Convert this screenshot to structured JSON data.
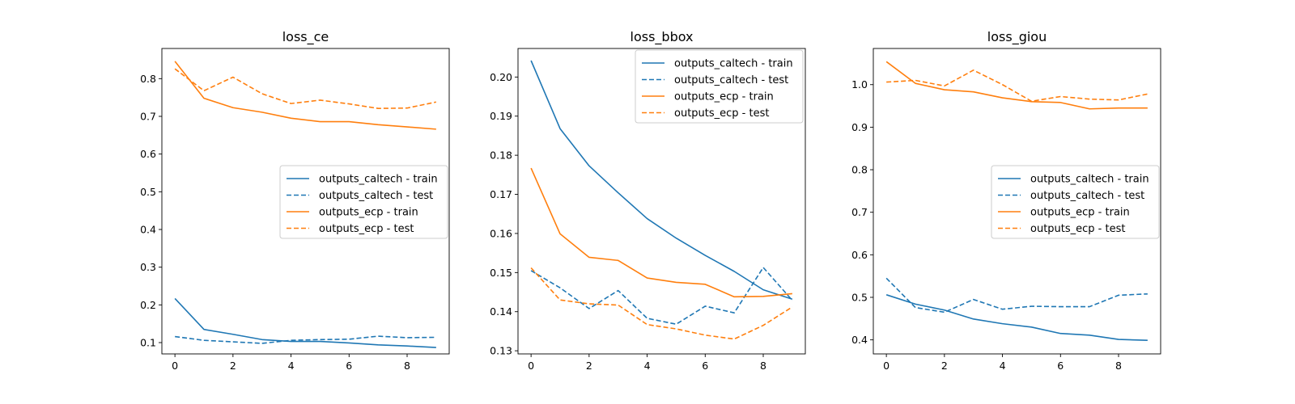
{
  "chart_data": [
    {
      "type": "line",
      "title": "loss_ce",
      "xlabel": "",
      "ylabel": "",
      "x": [
        0,
        1,
        2,
        3,
        4,
        5,
        6,
        7,
        8,
        9
      ],
      "xlim": [
        -0.45,
        9.45
      ],
      "ylim": [
        0.07,
        0.88
      ],
      "xticks": [
        0,
        2,
        4,
        6,
        8
      ],
      "yticks": [
        0.1,
        0.2,
        0.3,
        0.4,
        0.5,
        0.6,
        0.7,
        0.8
      ],
      "grid": false,
      "legend_position": "center-right",
      "series": [
        {
          "name": "outputs_caltech - train",
          "color": "#1f77b4",
          "style": "solid",
          "values": [
            0.217,
            0.135,
            0.122,
            0.108,
            0.103,
            0.103,
            0.099,
            0.094,
            0.091,
            0.087
          ]
        },
        {
          "name": "outputs_caltech - test",
          "color": "#1f77b4",
          "style": "dashed",
          "values": [
            0.116,
            0.106,
            0.102,
            0.098,
            0.106,
            0.108,
            0.109,
            0.117,
            0.113,
            0.114
          ]
        },
        {
          "name": "outputs_ecp - train",
          "color": "#ff7f0e",
          "style": "solid",
          "values": [
            0.846,
            0.748,
            0.723,
            0.711,
            0.695,
            0.686,
            0.686,
            0.678,
            0.672,
            0.666
          ]
        },
        {
          "name": "outputs_ecp - test",
          "color": "#ff7f0e",
          "style": "dashed",
          "values": [
            0.826,
            0.768,
            0.804,
            0.76,
            0.734,
            0.743,
            0.733,
            0.721,
            0.722,
            0.738
          ]
        }
      ]
    },
    {
      "type": "line",
      "title": "loss_bbox",
      "xlabel": "",
      "ylabel": "",
      "x": [
        0,
        1,
        2,
        3,
        4,
        5,
        6,
        7,
        8,
        9
      ],
      "xlim": [
        -0.45,
        9.45
      ],
      "ylim": [
        0.1292,
        0.2073
      ],
      "xticks": [
        0,
        2,
        4,
        6,
        8
      ],
      "yticks": [
        0.13,
        0.14,
        0.15,
        0.16,
        0.17,
        0.18,
        0.19,
        0.2
      ],
      "grid": false,
      "legend_position": "top-right",
      "series": [
        {
          "name": "outputs_caltech - train",
          "color": "#1f77b4",
          "style": "solid",
          "values": [
            0.2042,
            0.1868,
            0.1773,
            0.1704,
            0.1638,
            0.1588,
            0.1544,
            0.1503,
            0.1456,
            0.1432
          ]
        },
        {
          "name": "outputs_caltech - test",
          "color": "#1f77b4",
          "style": "dashed",
          "values": [
            0.1505,
            0.1461,
            0.1408,
            0.1454,
            0.1383,
            0.1368,
            0.1414,
            0.1397,
            0.1513,
            0.1429
          ]
        },
        {
          "name": "outputs_ecp - train",
          "color": "#ff7f0e",
          "style": "solid",
          "values": [
            0.1767,
            0.1599,
            0.1539,
            0.1531,
            0.1486,
            0.1475,
            0.147,
            0.1438,
            0.1439,
            0.1446
          ]
        },
        {
          "name": "outputs_ecp - test",
          "color": "#ff7f0e",
          "style": "dashed",
          "values": [
            0.1512,
            0.143,
            0.142,
            0.1417,
            0.1367,
            0.1356,
            0.134,
            0.133,
            0.1365,
            0.1412
          ]
        }
      ]
    },
    {
      "type": "line",
      "title": "loss_giou",
      "xlabel": "",
      "ylabel": "",
      "x": [
        0,
        1,
        2,
        3,
        4,
        5,
        6,
        7,
        8,
        9
      ],
      "xlim": [
        -0.45,
        9.45
      ],
      "ylim": [
        0.367,
        1.085
      ],
      "xticks": [
        0,
        2,
        4,
        6,
        8
      ],
      "yticks": [
        0.4,
        0.5,
        0.6,
        0.7,
        0.8,
        0.9,
        1.0
      ],
      "grid": false,
      "legend_position": "center-right",
      "series": [
        {
          "name": "outputs_caltech - train",
          "color": "#1f77b4",
          "style": "solid",
          "values": [
            0.506,
            0.484,
            0.47,
            0.449,
            0.438,
            0.43,
            0.415,
            0.411,
            0.401,
            0.399
          ]
        },
        {
          "name": "outputs_caltech - test",
          "color": "#1f77b4",
          "style": "dashed",
          "values": [
            0.545,
            0.476,
            0.465,
            0.495,
            0.472,
            0.479,
            0.478,
            0.478,
            0.505,
            0.508
          ]
        },
        {
          "name": "outputs_ecp - train",
          "color": "#ff7f0e",
          "style": "solid",
          "values": [
            1.054,
            1.003,
            0.988,
            0.983,
            0.969,
            0.96,
            0.958,
            0.943,
            0.945,
            0.945
          ]
        },
        {
          "name": "outputs_ecp - test",
          "color": "#ff7f0e",
          "style": "dashed",
          "values": [
            1.006,
            1.01,
            0.997,
            1.034,
            1.0,
            0.961,
            0.972,
            0.966,
            0.964,
            0.978
          ]
        }
      ]
    }
  ]
}
